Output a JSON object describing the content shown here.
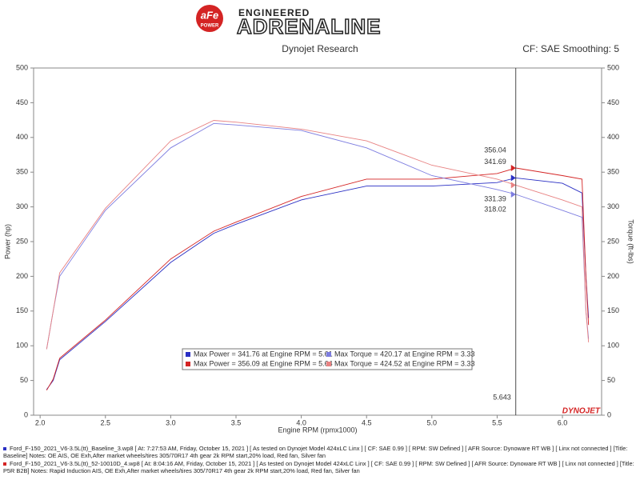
{
  "chart_data": {
    "type": "line",
    "brand": "aFe",
    "brand_sub": "POWER",
    "tagline": "ENGINEERED",
    "headline": "ADRENALINE",
    "title": "Dynojet Research",
    "subtitle": "CF: SAE Smoothing: 5",
    "y_label": "Power (hp)",
    "y2_label": "Torque (ft-lbs)",
    "x_label": "Engine RPM (rpmx1000)",
    "watermark": "DYNOJET",
    "x": [
      2.05,
      2.1,
      2.15,
      2.5,
      3.0,
      3.33,
      3.5,
      4.0,
      4.5,
      5.0,
      5.5,
      5.643,
      6.0,
      6.15,
      6.18,
      6.2
    ],
    "xlim": [
      1.95,
      6.3
    ],
    "xticks": [
      {
        "value": 2,
        "label": "2.0"
      },
      {
        "value": 2.5,
        "label": "2.5"
      },
      {
        "value": 3,
        "label": "3.0"
      },
      {
        "value": 3.5,
        "label": "3.5"
      },
      {
        "value": 4,
        "label": "4.0"
      },
      {
        "value": 4.5,
        "label": "4.5"
      },
      {
        "value": 5,
        "label": "5.0"
      },
      {
        "value": 5.5,
        "label": "5.5"
      },
      {
        "value": 6,
        "label": "6.0"
      }
    ],
    "ylim": [
      0,
      500
    ],
    "yticks": [
      0,
      50,
      100,
      150,
      200,
      250,
      300,
      350,
      400,
      450,
      500
    ],
    "y2lim": [
      0,
      500
    ],
    "y2ticks": [
      0,
      50,
      100,
      150,
      200,
      250,
      300,
      350,
      400,
      450,
      500
    ],
    "cursor": {
      "x": 5.643,
      "label": "5.643"
    },
    "series": [
      {
        "name": "Max Power = 341.76 at Engine RPM = 5.61",
        "color": "#2a2fc4",
        "values": [
          37,
          50,
          80,
          135,
          220,
          262,
          275,
          310,
          330,
          330,
          335,
          341.69,
          334,
          320,
          200,
          140
        ]
      },
      {
        "name": "Max Power = 356.09 at Engine RPM = 5.64",
        "color": "#d42424",
        "values": [
          36,
          52,
          82,
          137,
          225,
          265,
          278,
          315,
          340,
          340,
          348,
          356.04,
          345,
          340,
          200,
          130
        ]
      },
      {
        "name": "Max Torque = 420.17 at Engine RPM = 3.33",
        "color": "#7d7de0",
        "axis": "y2",
        "values": [
          95,
          150,
          200,
          295,
          385,
          420.17,
          418,
          410,
          385,
          345,
          325,
          318.02,
          295,
          285,
          150,
          110
        ]
      },
      {
        "name": "Max Torque = 424.52 at Engine RPM = 3.33",
        "color": "#e88282",
        "axis": "y2",
        "values": [
          95,
          150,
          205,
          298,
          395,
          424.52,
          422,
          412,
          395,
          360,
          340,
          331.39,
          310,
          300,
          150,
          105
        ]
      }
    ],
    "notes": [
      "Ford_F-150_2021_V6-3.5L(tt)_Baseline_3.wp8 [ At: 7:27:53 AM, Friday, October 15, 2021 ] [ As tested on Dynojet Model 424xLC Linx ] [ CF: SAE 0.99 ] [ RPM: SW Defined ] [ AFR Source: Dynoware RT WB ] [ Linx not connected ] [Title: Baseline]  Notes: OE AIS, OE Exh,After market wheels/tires 305/70R17 4th gear 2k RPM start,20% load, Red fan, Silver fan",
      "Ford_F-150_2021_V6-3.5L(tt)_52-10010D_4.wp8 [ At: 8:04:16 AM, Friday, October 15, 2021 ] [ As tested on Dynojet Model 424xLC Linx ] [ CF: SAE 0.99 ] [ RPM: SW Defined ] [ AFR Source: Dynoware RT WB ] [ Linx not connected ] [Title: P5R B2B]  Notes: Rapid Induction AIS, OE Exh,After market wheels/tires 305/70R17 4th gear 2k RPM start,20% load, Red fan, Silver fan"
    ]
  }
}
